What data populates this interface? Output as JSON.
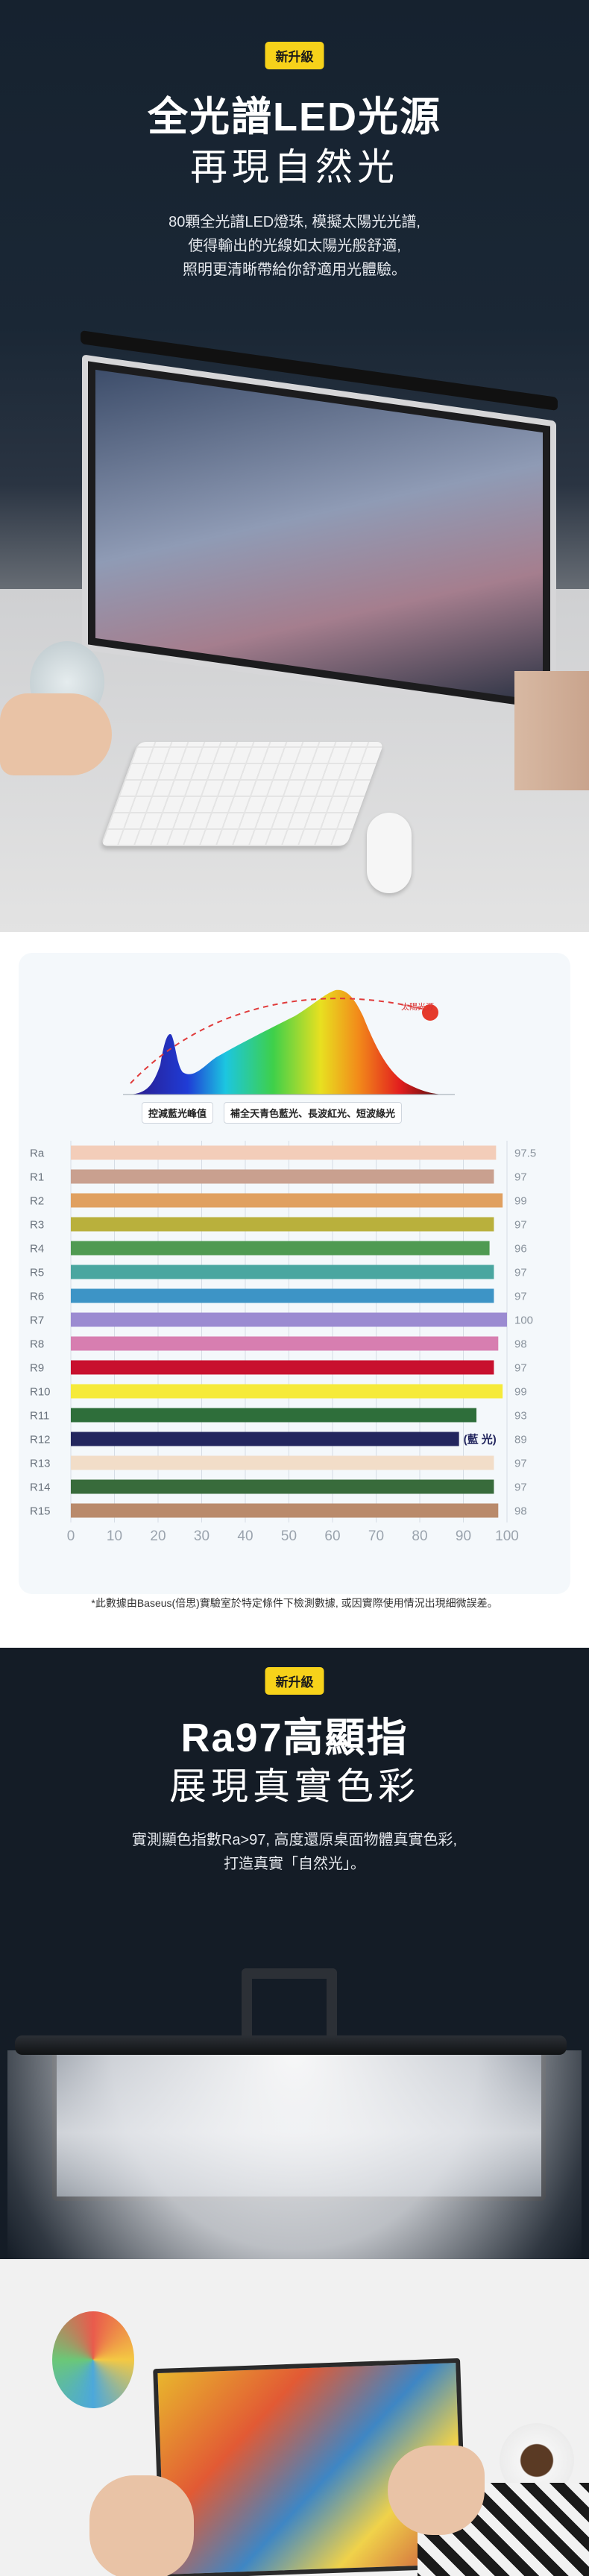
{
  "section1": {
    "badge": "新升級",
    "title": "全光譜LED光源",
    "subtitle": "再現自然光",
    "desc": [
      "80顆全光譜LED燈珠, 模擬太陽光光譜,",
      "使得輸出的光線如太陽光般舒適,",
      "照明更清晰帶給你舒適用光體驗。"
    ]
  },
  "spectrum": {
    "label_left": "控減藍光峰值",
    "label_right": "補全天青色藍光、長波紅光、短波綠光",
    "sun_label": "太陽光源"
  },
  "chart_data": {
    "type": "bar",
    "orientation": "horizontal",
    "categories": [
      "Ra",
      "R1",
      "R2",
      "R3",
      "R4",
      "R5",
      "R6",
      "R7",
      "R8",
      "R9",
      "R10",
      "R11",
      "R12",
      "R13",
      "R14",
      "R15"
    ],
    "values": [
      97.5,
      97,
      99,
      97,
      96,
      97,
      97,
      100,
      98,
      97,
      99,
      93,
      89,
      97,
      97,
      98
    ],
    "value_labels": [
      "97.5",
      "97",
      "99",
      "97",
      "96",
      "97",
      "97",
      "100",
      "98",
      "97",
      "99",
      "93",
      "89",
      "97",
      "97",
      "98"
    ],
    "colors": [
      "#f3cdb9",
      "#c9a08f",
      "#e0a060",
      "#b9b03c",
      "#4f9a52",
      "#4aa6a0",
      "#3d94c6",
      "#9b8bd1",
      "#d77eb0",
      "#c8102e",
      "#f6ea3a",
      "#2e6e3a",
      "#23265e",
      "#f2ddc8",
      "#386b3b",
      "#b98a6b"
    ],
    "xlim": [
      0,
      100
    ],
    "xticks": [
      "0",
      "10",
      "20",
      "30",
      "40",
      "50",
      "60",
      "70",
      "80",
      "90",
      "100"
    ],
    "annotation": "(藍 光)"
  },
  "footnote": "*此數據由Baseus(倍思)實驗室於特定條件下檢測數據, 或因實際使用情況出現細微誤差。",
  "section3": {
    "badge": "新升級",
    "title": "Ra97高顯指",
    "subtitle": "展現真實色彩",
    "desc": [
      "實測顯色指數Ra>97, 高度還原桌面物體真實色彩,",
      "打造真實「自然光」。"
    ]
  }
}
